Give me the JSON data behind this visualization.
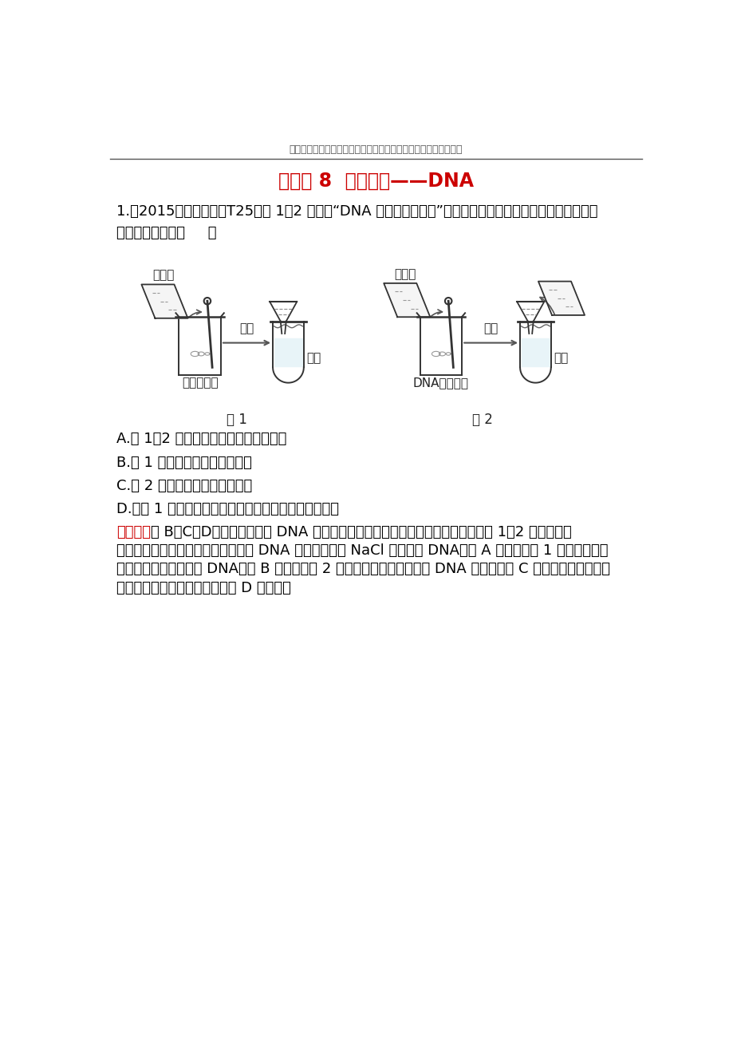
{
  "header_text": "最新学习考试资料试卷件及海量高中、初中教学课尽在金锄头文库",
  "title": "知识点 8  遗传物质——DNA",
  "question_line1": "1.（2015・江苏高考・T25）图 1、2 分别为“DNA 的粗提取与鉴定”实验中部分操作步骤示意图，下列叙述正",
  "question_line2": "确的是（多选）（     ）",
  "option_a": "A.图 1、2 中加入蕋馏水稀释的目的相同",
  "option_b": "B.图 1 中完成过滤之后保留滤液",
  "option_c": "C.图 2 中完成过滤之后弃去滤液",
  "option_d": "D.在图 1 鸡血细胞液中加入少许嫩肉粉有助于去除杂质",
  "analysis_label": "【解析】",
  "analysis_line1": "选 B、C、D。本题主要考查 DNA 的粗提取与鉴定实验的原理和实验操作目的。图 1、2 中加入蕋馏",
  "analysis_line2": "水稀释的目的分别是破碎细胞获取含 DNA 的滤液、稀释 NaCl 溶液析出 DNA，故 A 项错误；图 1 过滤之后保留",
  "analysis_line3": "滤液，因为滤液中含有 DNA，故 B 项正确；图 2 过滤之后弃去滤液，因为 DNA 已析出，故 C 项正确；嫩肉粉中的",
  "analysis_line4": "蛋白酶可对蛋白质进行水解，故 D 项正确。",
  "fig1_label_water": "蕋馏水",
  "fig1_label_filter": "过滤",
  "fig1_label_filtrate": "滤液",
  "fig1_label_sample": "鸡血细胞液",
  "fig1_caption": "图 1",
  "fig2_label_water": "蕋馏水",
  "fig2_label_filter": "过滤",
  "fig2_label_filtrate": "滤液",
  "fig2_label_sample": "DNA浓盐溶液",
  "fig2_caption": "图 2",
  "bg_color": "#ffffff",
  "text_color": "#000000",
  "title_color": "#cc0000",
  "analysis_label_color": "#cc0000",
  "header_color": "#555555",
  "line_color": "#333333"
}
